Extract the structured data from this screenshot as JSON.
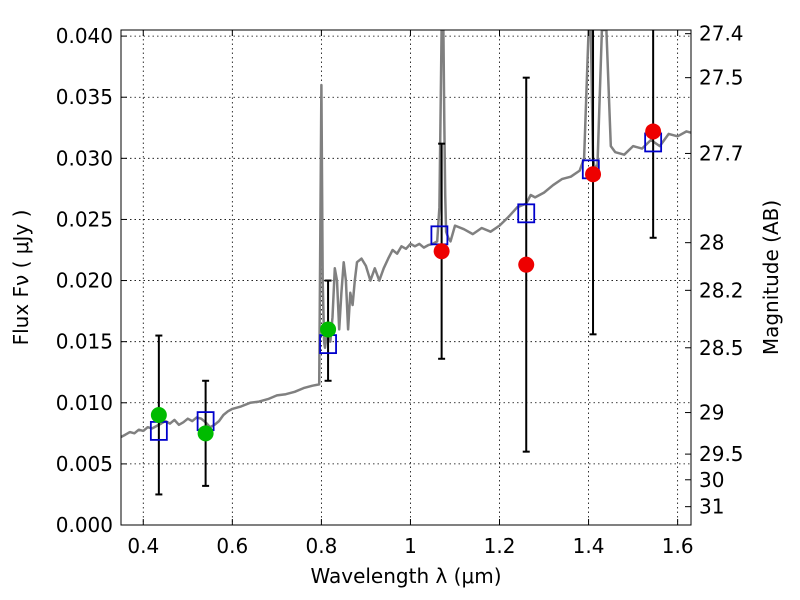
{
  "chart_data": {
    "type": "line",
    "xlabel": "Wavelength  λ (μm)",
    "ylabel": "Flux  Fν  ( μJy )",
    "y2label": "Magnitude (AB)",
    "xlim": [
      0.35,
      1.63
    ],
    "ylim": [
      0.0,
      0.0405
    ],
    "x_ticks": [
      "0.4",
      "0.6",
      "0.8",
      "1",
      "1.2",
      "1.4",
      "1.6"
    ],
    "y_ticks": [
      "0.000",
      "0.005",
      "0.010",
      "0.015",
      "0.020",
      "0.025",
      "0.030",
      "0.035",
      "0.040"
    ],
    "y2_ticks": [
      {
        "label": "27.4",
        "flux": 0.0402
      },
      {
        "label": "27.5",
        "flux": 0.0366
      },
      {
        "label": "27.7",
        "flux": 0.0304
      },
      {
        "label": "28",
        "flux": 0.0231
      },
      {
        "label": "28.2",
        "flux": 0.0192
      },
      {
        "label": "28.5",
        "flux": 0.0145
      },
      {
        "label": "29",
        "flux": 0.0092
      },
      {
        "label": "29.5",
        "flux": 0.0058
      },
      {
        "label": "30",
        "flux": 0.0037
      },
      {
        "label": "31",
        "flux": 0.0015
      }
    ],
    "grid": true,
    "colors": {
      "sed": "#808080",
      "model": "#0000cc",
      "green": "#00bb00",
      "red": "#ee0000",
      "errorbar": "#000000"
    },
    "sed_curve": {
      "x": [
        0.35,
        0.36,
        0.37,
        0.38,
        0.39,
        0.4,
        0.41,
        0.42,
        0.43,
        0.44,
        0.45,
        0.46,
        0.47,
        0.48,
        0.49,
        0.5,
        0.51,
        0.52,
        0.53,
        0.54,
        0.55,
        0.56,
        0.57,
        0.58,
        0.59,
        0.6,
        0.62,
        0.64,
        0.66,
        0.68,
        0.7,
        0.72,
        0.74,
        0.76,
        0.78,
        0.795,
        0.8,
        0.803,
        0.806,
        0.808,
        0.81,
        0.815,
        0.82,
        0.825,
        0.83,
        0.835,
        0.84,
        0.845,
        0.85,
        0.855,
        0.86,
        0.865,
        0.87,
        0.875,
        0.88,
        0.89,
        0.9,
        0.91,
        0.92,
        0.93,
        0.94,
        0.95,
        0.96,
        0.97,
        0.98,
        0.99,
        1.0,
        1.01,
        1.02,
        1.03,
        1.04,
        1.05,
        1.06,
        1.065,
        1.07,
        1.072,
        1.074,
        1.076,
        1.078,
        1.08,
        1.085,
        1.09,
        1.1,
        1.12,
        1.14,
        1.16,
        1.18,
        1.2,
        1.22,
        1.24,
        1.26,
        1.27,
        1.28,
        1.3,
        1.32,
        1.34,
        1.36,
        1.38,
        1.39,
        1.4,
        1.405,
        1.41,
        1.415,
        1.42,
        1.43,
        1.44,
        1.45,
        1.46,
        1.47,
        1.48,
        1.5,
        1.52,
        1.54,
        1.56,
        1.58,
        1.6,
        1.62,
        1.63
      ],
      "y": [
        0.0072,
        0.0074,
        0.0076,
        0.0075,
        0.0078,
        0.0077,
        0.008,
        0.0079,
        0.0081,
        0.0083,
        0.0085,
        0.0083,
        0.0086,
        0.0082,
        0.0084,
        0.0087,
        0.0085,
        0.0088,
        0.0087,
        0.0084,
        0.008,
        0.0082,
        0.0085,
        0.009,
        0.0093,
        0.0095,
        0.0097,
        0.01,
        0.0101,
        0.0103,
        0.0106,
        0.0107,
        0.0109,
        0.0112,
        0.0114,
        0.0115,
        0.036,
        0.02,
        0.015,
        0.0145,
        0.015,
        0.016,
        0.015,
        0.017,
        0.021,
        0.02,
        0.016,
        0.019,
        0.0215,
        0.02,
        0.016,
        0.019,
        0.018,
        0.02,
        0.0215,
        0.0218,
        0.0212,
        0.02,
        0.021,
        0.02,
        0.021,
        0.0218,
        0.0225,
        0.0222,
        0.0228,
        0.0226,
        0.023,
        0.0228,
        0.023,
        0.0227,
        0.0229,
        0.023,
        0.0232,
        0.026,
        0.0405,
        0.0405,
        0.0405,
        0.033,
        0.027,
        0.024,
        0.0235,
        0.0232,
        0.0245,
        0.0242,
        0.0238,
        0.0243,
        0.024,
        0.0245,
        0.0252,
        0.026,
        0.0263,
        0.027,
        0.0268,
        0.0272,
        0.0278,
        0.0283,
        0.0285,
        0.029,
        0.03,
        0.0405,
        0.0405,
        0.03,
        0.029,
        0.0295,
        0.0405,
        0.0405,
        0.031,
        0.0305,
        0.0304,
        0.0303,
        0.031,
        0.0308,
        0.0315,
        0.031,
        0.032,
        0.0318,
        0.0322,
        0.0321
      ]
    },
    "model_points": {
      "x": [
        0.435,
        0.54,
        0.815,
        1.065,
        1.26,
        1.405,
        1.545
      ],
      "y": [
        0.0077,
        0.0085,
        0.0148,
        0.0237,
        0.0255,
        0.0291,
        0.0313
      ]
    },
    "green_points": {
      "x": [
        0.435,
        0.54,
        0.815
      ],
      "y": [
        0.009,
        0.0075,
        0.016
      ],
      "yerr_low": [
        0.0025,
        0.0032,
        0.0118
      ],
      "yerr_high": [
        0.0155,
        0.0118,
        0.02
      ]
    },
    "red_points": {
      "x": [
        1.07,
        1.26,
        1.41,
        1.545
      ],
      "y": [
        0.0224,
        0.0213,
        0.0287,
        0.0322
      ],
      "yerr_low": [
        0.0136,
        0.006,
        0.0156,
        0.0235
      ],
      "yerr_high": [
        0.0312,
        0.0366,
        0.0405,
        0.0405
      ]
    }
  }
}
